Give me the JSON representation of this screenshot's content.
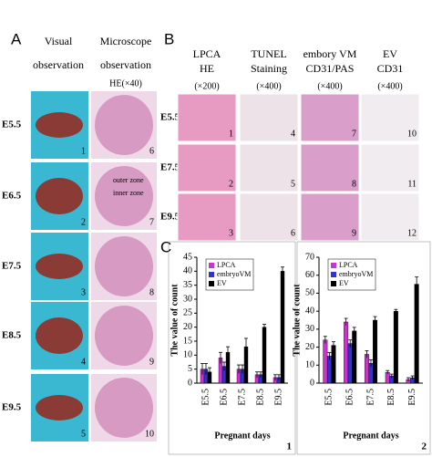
{
  "panel_a": {
    "label": "A",
    "columns": [
      {
        "title": [
          "Visual",
          "observation"
        ]
      },
      {
        "title": [
          "Microscope",
          "observation"
        ],
        "subtitle": "HE(×40)"
      }
    ],
    "rows": [
      "E5.5",
      "E6.5",
      "E7.5",
      "E8.5",
      "E9.5"
    ],
    "image_numbers": [
      [
        1,
        6
      ],
      [
        2,
        7
      ],
      [
        3,
        8
      ],
      [
        4,
        9
      ],
      [
        5,
        10
      ]
    ],
    "annotations": [
      "outer zone",
      "inner zone"
    ]
  },
  "panel_b": {
    "label": "B",
    "columns": [
      {
        "title": [
          "LPCA",
          "HE"
        ],
        "magnification": "(×200)"
      },
      {
        "title": [
          "TUNEL",
          "Staining"
        ],
        "magnification": "(×400)"
      },
      {
        "title": [
          "embory VM",
          "CD31/PAS"
        ],
        "magnification": "(×400)"
      },
      {
        "title": [
          "EV",
          "CD31"
        ],
        "magnification": "(×400)"
      }
    ],
    "rows": [
      "E5.5",
      "E7.5",
      "E9.5"
    ],
    "image_numbers": [
      [
        1,
        4,
        7,
        10
      ],
      [
        2,
        5,
        8,
        11
      ],
      [
        3,
        6,
        9,
        12
      ]
    ]
  },
  "panel_c": {
    "label": "C"
  },
  "chart_data": [
    {
      "type": "bar",
      "panel_number": 1,
      "x_label": "Pregnant days",
      "y_label": "The value of count",
      "categories": [
        "E5.5",
        "E6.5",
        "E7.5",
        "E8.5",
        "E9.5"
      ],
      "series": [
        {
          "name": "LPCA",
          "color": "#cc33cc",
          "values": [
            5,
            9,
            5,
            3,
            2
          ],
          "errors": [
            2,
            2,
            1.5,
            1,
            1
          ]
        },
        {
          "name": "embryoVM",
          "color": "#3333cc",
          "values": [
            5,
            6,
            5,
            3,
            2
          ],
          "errors": [
            2,
            1.5,
            1.5,
            1,
            1
          ]
        },
        {
          "name": "EV",
          "color": "#000000",
          "values": [
            4,
            11,
            13,
            20,
            40
          ],
          "errors": [
            1.5,
            2,
            3,
            1,
            1.5
          ]
        }
      ],
      "ylim": [
        0,
        45
      ],
      "yticks": [
        0,
        5,
        10,
        15,
        20,
        25,
        30,
        35,
        40,
        45
      ],
      "legend": "upper left"
    },
    {
      "type": "bar",
      "panel_number": 2,
      "x_label": "Pregnant days",
      "y_label": "The value of count",
      "categories": [
        "E5.5",
        "E6.5",
        "E7.5",
        "E8.5",
        "E9.5"
      ],
      "series": [
        {
          "name": "LPCA",
          "color": "#cc33cc",
          "values": [
            24,
            34,
            16,
            6,
            2
          ],
          "errors": [
            2,
            2,
            2,
            1,
            1
          ]
        },
        {
          "name": "embryoVM",
          "color": "#3333cc",
          "values": [
            15,
            22,
            11,
            4,
            3
          ],
          "errors": [
            2,
            2,
            2,
            1,
            1
          ]
        },
        {
          "name": "EV",
          "color": "#000000",
          "values": [
            21,
            29,
            35,
            40,
            55
          ],
          "errors": [
            2,
            2,
            2,
            1,
            4
          ]
        }
      ],
      "ylim": [
        0,
        70
      ],
      "yticks": [
        0,
        10,
        20,
        30,
        40,
        50,
        60,
        70
      ],
      "legend": "upper left"
    }
  ]
}
